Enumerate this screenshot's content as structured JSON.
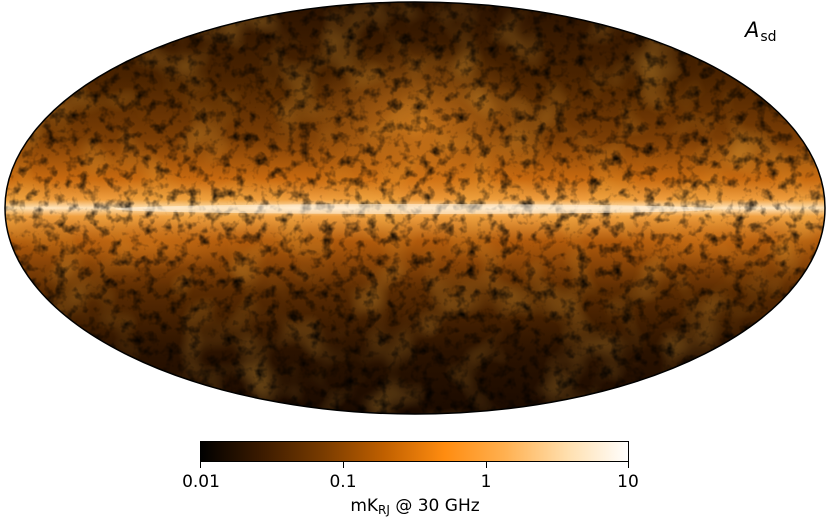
{
  "map": {
    "projection": "Mollweide",
    "component_symbol": "A",
    "component_subscript": "sd",
    "colormap": [
      "#000000",
      "#3a1a00",
      "#7a3c00",
      "#c06000",
      "#ff8c10",
      "#ffb050",
      "#ffe0b0",
      "#ffffff"
    ]
  },
  "colorbar": {
    "scale": "log",
    "range": [
      0.01,
      10
    ],
    "ticks": [
      {
        "value": 0.01,
        "label": "0.01"
      },
      {
        "value": 0.1,
        "label": "0.1"
      },
      {
        "value": 1,
        "label": "1"
      },
      {
        "value": 10,
        "label": "10"
      }
    ],
    "unit_main": "mK",
    "unit_sub": "RJ",
    "unit_suffix": " @ 30 GHz"
  }
}
